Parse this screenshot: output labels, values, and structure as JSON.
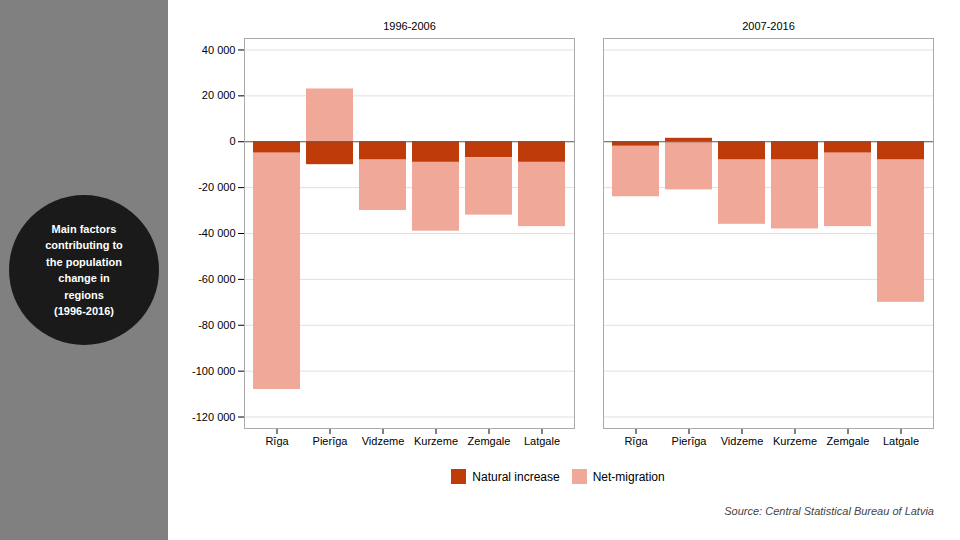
{
  "chart_data": {
    "type": "bar",
    "stacked": true,
    "title": "Main factors\ncontributing to\nthe population\nchange in\nregions\n(1996-2016)",
    "caption": "Source: Central Statistical Bureau of Latvia",
    "groups": [
      "1996-2006",
      "2007-2016"
    ],
    "categories": [
      "Rīga",
      "Pierīga",
      "Vidzeme",
      "Kurzeme",
      "Zemgale",
      "Latgale"
    ],
    "series": [
      {
        "name": "Natural increase",
        "color": "#bf3c0a",
        "values": [
          [
            -5000,
            -10000,
            -8000,
            -9000,
            -7000,
            -9000
          ],
          [
            -2000,
            1500,
            -8000,
            -8000,
            -5000,
            -8000
          ]
        ]
      },
      {
        "name": "Net-migration",
        "color": "#f0a898",
        "values": [
          [
            -103000,
            23000,
            -22000,
            -30000,
            -25000,
            -28000
          ],
          [
            -22000,
            -21000,
            -28000,
            -30000,
            -32000,
            -62000
          ]
        ]
      }
    ],
    "ylim": [
      -125000,
      45000
    ],
    "yticks": [
      {
        "value": -120000,
        "label": "-120 000"
      },
      {
        "value": -100000,
        "label": "-100 000"
      },
      {
        "value": -80000,
        "label": "-80 000"
      },
      {
        "value": -60000,
        "label": "-60 000"
      },
      {
        "value": -40000,
        "label": "-40 000"
      },
      {
        "value": -20000,
        "label": "-20 000"
      },
      0,
      {
        "value": 20000,
        "label": "20 000"
      },
      {
        "value": 40000,
        "label": "40 000"
      }
    ],
    "grid": true,
    "legend": "bottom"
  }
}
